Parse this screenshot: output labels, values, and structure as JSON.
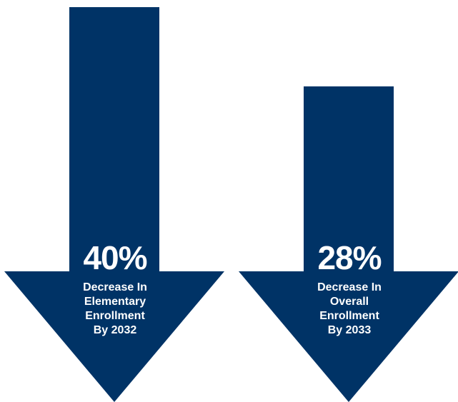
{
  "colors": {
    "arrow": "#003366",
    "text": "#ffffff",
    "background": "#ffffff"
  },
  "chart_data": {
    "type": "bar",
    "orientation": "downward-arrows",
    "categories": [
      "Elementary Enrollment",
      "Overall Enrollment"
    ],
    "values": [
      40,
      28
    ],
    "unit": "%",
    "items": [
      {
        "value_label": "40%",
        "caption_lines": [
          "Decrease In",
          "Elementary",
          "Enrollment",
          "By 2032"
        ]
      },
      {
        "value_label": "28%",
        "caption_lines": [
          "Decrease In",
          "Overall",
          "Enrollment",
          "By 2033"
        ]
      }
    ]
  }
}
